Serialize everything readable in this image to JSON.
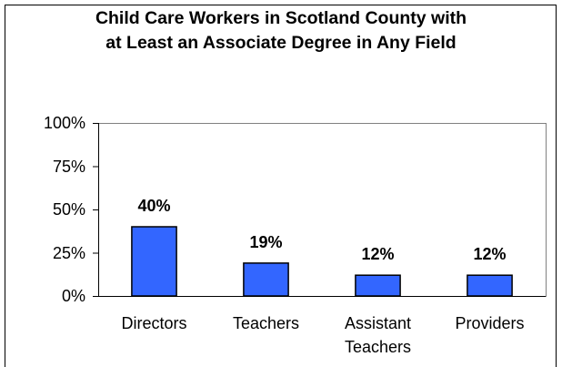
{
  "chart_data": {
    "type": "bar",
    "title": "Child Care Workers in Scotland County with at Least an Associate Degree in Any Field",
    "categories": [
      "Directors",
      "Teachers",
      "Assistant Teachers",
      "Providers"
    ],
    "values": [
      40,
      19,
      12,
      12
    ],
    "value_labels": [
      "40%",
      "19%",
      "12%",
      "12%"
    ],
    "color": "#3366ff",
    "ylim": [
      0,
      100
    ],
    "yticks": [
      {
        "value": 0,
        "label": "0%"
      },
      {
        "value": 25,
        "label": "25%"
      },
      {
        "value": 50,
        "label": "50%"
      },
      {
        "value": 75,
        "label": "75%"
      },
      {
        "value": 100,
        "label": "100%"
      }
    ],
    "grid": false
  }
}
